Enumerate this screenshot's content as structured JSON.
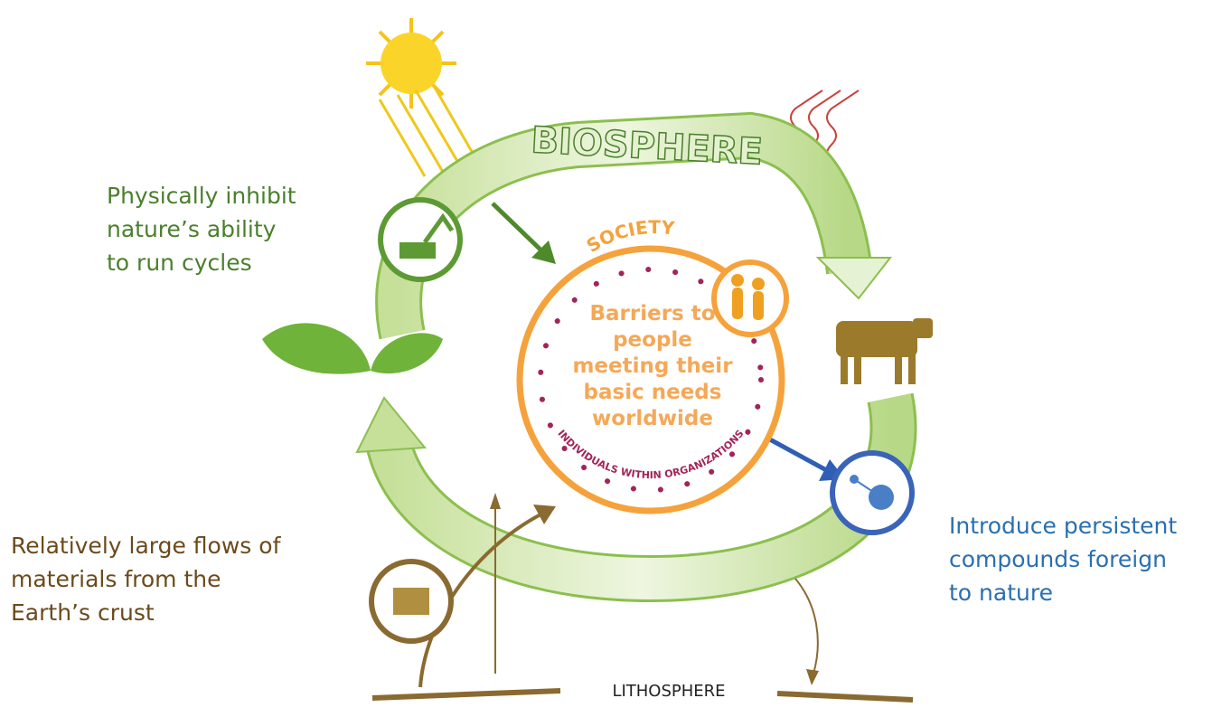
{
  "biosphere": "BIOSPHERE",
  "lithosphere": "LITHOSPHERE",
  "society": {
    "title": "SOCIETY",
    "subtitle": "INDIVIDUALS WITHIN ORGANIZATIONS",
    "center_text": [
      "Barriers to",
      "people",
      "meeting their",
      "basic needs",
      "worldwide"
    ]
  },
  "annotations": [
    {
      "lines": [
        "Physically inhibit",
        "nature’s ability",
        "to run cycles"
      ],
      "color": "#4a7f2c"
    },
    {
      "lines": [
        "Relatively large flows of",
        "materials from the",
        "Earth’s crust"
      ],
      "color": "#6b4a1c"
    },
    {
      "lines": [
        "Introduce persistent",
        "compounds foreign",
        "to nature"
      ],
      "color": "#2a6fb0"
    }
  ]
}
